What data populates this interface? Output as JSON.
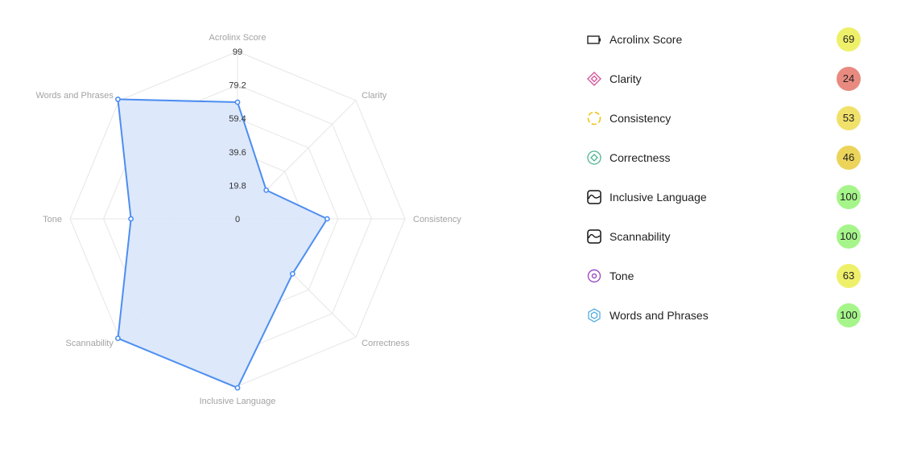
{
  "chart_data": {
    "type": "radar",
    "axes": [
      "Acrolinx Score",
      "Clarity",
      "Consistency",
      "Correctness",
      "Inclusive Language",
      "Scannability",
      "Tone",
      "Words and Phrases"
    ],
    "values": [
      69,
      24,
      53,
      46,
      100,
      100,
      63,
      100
    ],
    "ticks": [
      "0",
      "19.8",
      "39.6",
      "59.4",
      "79.2",
      "99"
    ],
    "range": [
      0,
      99
    ],
    "grid": true,
    "series_color": "#4d8ef0",
    "fill_color": "#dbe7fb"
  },
  "legend": {
    "items": [
      {
        "label": "Acrolinx Score",
        "score": "69",
        "icon": "battery-icon",
        "icon_color": "#222222",
        "badge_color": "#eef06a"
      },
      {
        "label": "Clarity",
        "score": "24",
        "icon": "diamond-icon",
        "icon_color": "#d65a9a",
        "badge_color": "#e88a80"
      },
      {
        "label": "Consistency",
        "score": "53",
        "icon": "dashed-circle-icon",
        "icon_color": "#f0c419",
        "badge_color": "#f0e16a"
      },
      {
        "label": "Correctness",
        "score": "46",
        "icon": "diamond-circle-icon",
        "icon_color": "#4fb390",
        "badge_color": "#ecd45a"
      },
      {
        "label": "Inclusive Language",
        "score": "100",
        "icon": "wave-square-icon",
        "icon_color": "#111111",
        "badge_color": "#a6f58a"
      },
      {
        "label": "Scannability",
        "score": "100",
        "icon": "wave-square-icon",
        "icon_color": "#111111",
        "badge_color": "#a6f58a"
      },
      {
        "label": "Tone",
        "score": "63",
        "icon": "target-circle-icon",
        "icon_color": "#9b4fc4",
        "badge_color": "#eef06a"
      },
      {
        "label": "Words and Phrases",
        "score": "100",
        "icon": "hexagon-icon",
        "icon_color": "#5aaee0",
        "badge_color": "#a6f58a"
      }
    ]
  }
}
